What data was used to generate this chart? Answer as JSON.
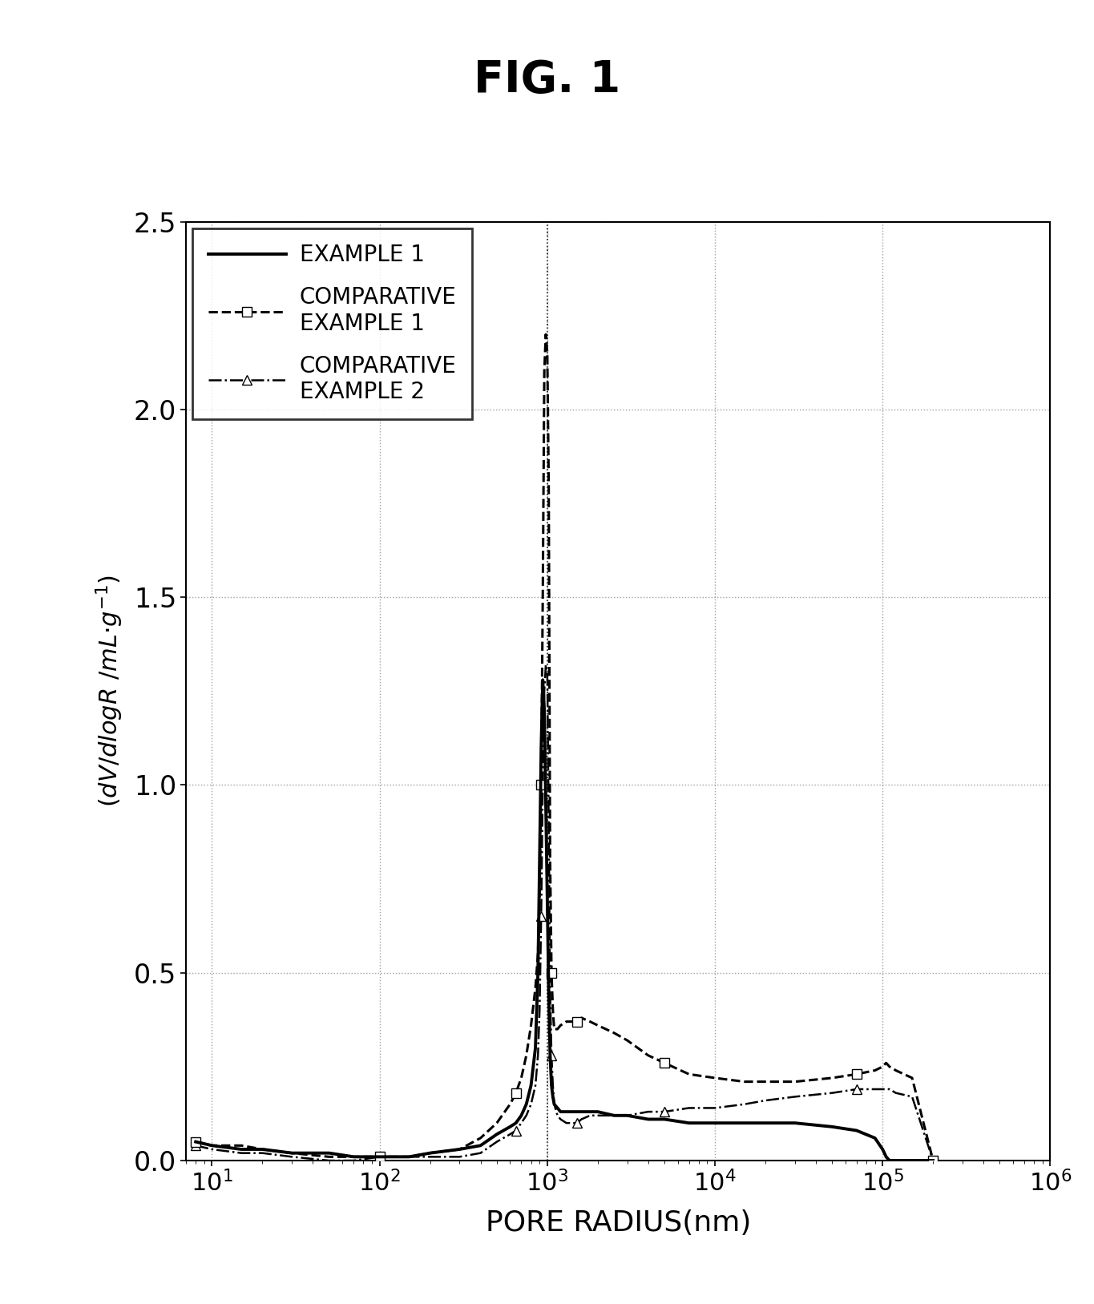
{
  "title": "FIG. 1",
  "xlabel": "PORE RADIUS(nm)",
  "ylabel_line1": "(dV/dlogR /mL·g⁻¹)",
  "xlim": [
    7,
    1000000.0
  ],
  "ylim": [
    0.0,
    2.5
  ],
  "yticks": [
    0.0,
    0.5,
    1.0,
    1.5,
    2.0,
    2.5
  ],
  "legend": [
    "EXAMPLE 1",
    "COMPARATIVE\nEXAMPLE 1",
    "COMPARATIVE\nEXAMPLE 2"
  ],
  "example1": {
    "x": [
      8,
      10,
      15,
      20,
      30,
      50,
      70,
      100,
      150,
      200,
      300,
      400,
      500,
      600,
      650,
      700,
      750,
      800,
      850,
      880,
      900,
      920,
      940,
      960,
      980,
      1000,
      1020,
      1040,
      1060,
      1080,
      1100,
      1150,
      1200,
      1300,
      1400,
      1500,
      1600,
      1800,
      2000,
      2500,
      3000,
      4000,
      5000,
      7000,
      10000,
      15000,
      20000,
      30000,
      50000,
      70000,
      90000,
      100000,
      105000,
      110000,
      120000,
      150000,
      200000
    ],
    "y": [
      0.05,
      0.04,
      0.03,
      0.03,
      0.02,
      0.02,
      0.01,
      0.01,
      0.01,
      0.02,
      0.03,
      0.04,
      0.07,
      0.09,
      0.1,
      0.12,
      0.15,
      0.2,
      0.3,
      0.5,
      0.8,
      1.1,
      1.28,
      1.2,
      0.95,
      0.7,
      0.45,
      0.28,
      0.2,
      0.17,
      0.15,
      0.14,
      0.13,
      0.13,
      0.13,
      0.13,
      0.13,
      0.13,
      0.13,
      0.12,
      0.12,
      0.11,
      0.11,
      0.1,
      0.1,
      0.1,
      0.1,
      0.1,
      0.09,
      0.08,
      0.06,
      0.03,
      0.01,
      0.0,
      0.0,
      0.0,
      0.0
    ]
  },
  "comp_example1": {
    "x": [
      8,
      10,
      15,
      20,
      30,
      50,
      70,
      100,
      150,
      200,
      300,
      400,
      500,
      600,
      650,
      700,
      750,
      800,
      850,
      880,
      900,
      920,
      940,
      960,
      980,
      1000,
      1020,
      1040,
      1060,
      1080,
      1100,
      1150,
      1200,
      1300,
      1400,
      1500,
      1600,
      1800,
      2000,
      2500,
      3000,
      4000,
      5000,
      7000,
      10000,
      15000,
      20000,
      30000,
      50000,
      70000,
      90000,
      100000,
      105000,
      110000,
      120000,
      150000,
      200000
    ],
    "y": [
      0.05,
      0.04,
      0.04,
      0.03,
      0.02,
      0.01,
      0.01,
      0.01,
      0.01,
      0.02,
      0.03,
      0.06,
      0.1,
      0.15,
      0.18,
      0.22,
      0.28,
      0.36,
      0.46,
      0.55,
      0.7,
      1.0,
      1.5,
      2.1,
      2.2,
      2.15,
      1.8,
      0.8,
      0.5,
      0.4,
      0.35,
      0.35,
      0.36,
      0.37,
      0.37,
      0.37,
      0.38,
      0.37,
      0.36,
      0.34,
      0.32,
      0.28,
      0.26,
      0.23,
      0.22,
      0.21,
      0.21,
      0.21,
      0.22,
      0.23,
      0.24,
      0.25,
      0.26,
      0.25,
      0.24,
      0.22,
      0.0
    ]
  },
  "comp_example2": {
    "x": [
      8,
      10,
      15,
      20,
      30,
      50,
      70,
      100,
      150,
      200,
      300,
      400,
      500,
      600,
      650,
      700,
      750,
      800,
      850,
      880,
      900,
      920,
      940,
      960,
      980,
      1000,
      1020,
      1040,
      1060,
      1080,
      1100,
      1150,
      1200,
      1300,
      1400,
      1500,
      1600,
      1800,
      2000,
      2500,
      3000,
      4000,
      5000,
      7000,
      10000,
      15000,
      20000,
      30000,
      50000,
      70000,
      90000,
      100000,
      105000,
      110000,
      120000,
      150000,
      200000
    ],
    "y": [
      0.04,
      0.03,
      0.02,
      0.02,
      0.01,
      0.0,
      0.0,
      0.01,
      0.01,
      0.01,
      0.01,
      0.02,
      0.05,
      0.07,
      0.08,
      0.1,
      0.12,
      0.15,
      0.2,
      0.28,
      0.4,
      0.65,
      1.0,
      1.25,
      1.32,
      1.3,
      0.9,
      0.45,
      0.28,
      0.2,
      0.15,
      0.12,
      0.11,
      0.1,
      0.1,
      0.1,
      0.11,
      0.12,
      0.12,
      0.12,
      0.12,
      0.13,
      0.13,
      0.14,
      0.14,
      0.15,
      0.16,
      0.17,
      0.18,
      0.19,
      0.19,
      0.19,
      0.19,
      0.19,
      0.18,
      0.17,
      0.0
    ]
  }
}
